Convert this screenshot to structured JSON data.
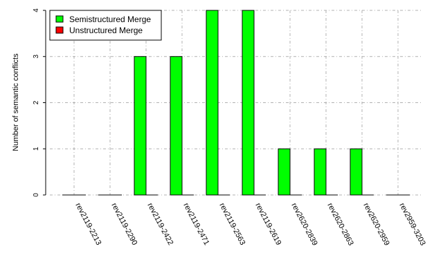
{
  "chart_data": {
    "type": "bar",
    "ylabel": "Number of semantic conflicts",
    "ylim": [
      0,
      4
    ],
    "yticks": [
      0,
      1,
      2,
      3,
      4
    ],
    "grid": true,
    "legend_position": "top-left",
    "categories": [
      "rev2119-2213",
      "rev2119-2290",
      "rev2119-2422",
      "rev2119-2471",
      "rev2119-2563",
      "rev2119-2619",
      "rev2620-2839",
      "rev2620-2863",
      "rev2620-2959",
      "rev2959-3203"
    ],
    "series": [
      {
        "name": "Semistructured Merge",
        "color": "#00ff00",
        "values": [
          0,
          0,
          3,
          3,
          4,
          4,
          1,
          1,
          1,
          0
        ]
      },
      {
        "name": "Unstructured Merge",
        "color": "#ff0000",
        "values": [
          0,
          0,
          0,
          0,
          0,
          0,
          0,
          0,
          0,
          0
        ]
      }
    ]
  }
}
